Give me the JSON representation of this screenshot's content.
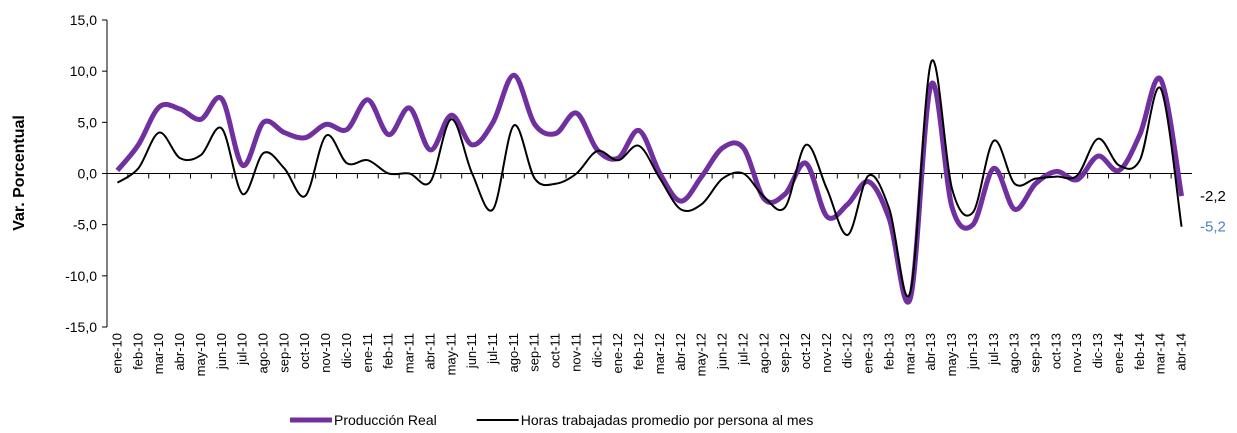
{
  "chart_data": {
    "type": "line",
    "y_label": "Var. Porcentual",
    "categories": [
      "ene-10",
      "feb-10",
      "mar-10",
      "abr-10",
      "may-10",
      "jun-10",
      "jul-10",
      "ago-10",
      "sep-10",
      "oct-10",
      "nov-10",
      "dic-10",
      "ene-11",
      "feb-11",
      "mar-11",
      "abr-11",
      "may-11",
      "jun-11",
      "jul-11",
      "ago-11",
      "sep-11",
      "oct-11",
      "nov-11",
      "dic-11",
      "ene-12",
      "feb-12",
      "mar-12",
      "abr-12",
      "may-12",
      "jun-12",
      "jul-12",
      "ago-12",
      "sep-12",
      "oct-12",
      "nov-12",
      "dic-12",
      "ene-13",
      "feb-13",
      "mar-13",
      "abr-13",
      "may-13",
      "jun-13",
      "jul-13",
      "ago-13",
      "sep-13",
      "oct-13",
      "nov-13",
      "dic-13",
      "ene-14",
      "feb-14",
      "mar-14",
      "abr-14"
    ],
    "series": [
      {
        "name": "Producción Real",
        "color": "#7030a0",
        "width": 5,
        "values": [
          0.3,
          2.8,
          6.5,
          6.3,
          5.3,
          7.3,
          0.8,
          5.0,
          4.0,
          3.5,
          4.8,
          4.3,
          7.2,
          3.8,
          6.4,
          2.3,
          5.7,
          2.8,
          5.0,
          9.6,
          4.8,
          3.9,
          5.9,
          2.3,
          1.5,
          4.2,
          0.0,
          -2.7,
          -0.3,
          2.5,
          2.5,
          -2.5,
          -2.0,
          1.0,
          -4.2,
          -3.0,
          -0.8,
          -4.5,
          -12.2,
          8.7,
          -3.3,
          -5.0,
          0.5,
          -3.5,
          -1.0,
          0.2,
          -0.6,
          1.7,
          0.3,
          3.8,
          9.2,
          -2.2
        ],
        "value_labels": [
          null,
          null,
          null,
          null,
          null,
          null,
          null,
          null,
          null,
          null,
          null,
          null,
          null,
          null,
          null,
          null,
          null,
          null,
          null,
          null,
          null,
          null,
          null,
          null,
          null,
          null,
          null,
          null,
          null,
          null,
          null,
          null,
          null,
          null,
          null,
          null,
          null,
          null,
          null,
          null,
          null,
          null,
          null,
          null,
          null,
          null,
          null,
          null,
          null,
          null,
          null,
          "-2,2"
        ],
        "label_color": "#000000"
      },
      {
        "name": "Horas trabajadas promedio por persona al mes",
        "color": "#000000",
        "width": 2,
        "values": [
          -0.9,
          0.5,
          4.0,
          1.5,
          1.8,
          4.4,
          -2.0,
          2.0,
          0.5,
          -2.2,
          3.7,
          1.0,
          1.3,
          0.0,
          0.0,
          -0.8,
          5.3,
          0.0,
          -3.5,
          4.7,
          -0.5,
          -1.0,
          0.0,
          2.2,
          1.3,
          2.7,
          -0.5,
          -3.5,
          -3.0,
          -0.5,
          0.0,
          -2.3,
          -3.3,
          2.8,
          -1.5,
          -6.0,
          -0.2,
          -3.5,
          -11.6,
          10.9,
          -1.5,
          -3.8,
          3.2,
          -1.0,
          -0.5,
          -0.3,
          -0.2,
          3.4,
          0.8,
          1.3,
          8.3,
          -5.2
        ],
        "value_labels": [
          null,
          null,
          null,
          null,
          null,
          null,
          null,
          null,
          null,
          null,
          null,
          null,
          null,
          null,
          null,
          null,
          null,
          null,
          null,
          null,
          null,
          null,
          null,
          null,
          null,
          null,
          null,
          null,
          null,
          null,
          null,
          null,
          null,
          null,
          null,
          null,
          null,
          null,
          null,
          null,
          null,
          null,
          null,
          null,
          null,
          null,
          null,
          null,
          null,
          null,
          null,
          "-5,2"
        ],
        "label_color": "#4f81bd"
      }
    ],
    "ylim": [
      -15,
      15
    ],
    "yticks": [
      {
        "value": -15,
        "label": "-15,0"
      },
      {
        "value": -10,
        "label": "-10,0"
      },
      {
        "value": -5,
        "label": "-5,0"
      },
      {
        "value": 0,
        "label": "0,0"
      },
      {
        "value": 5,
        "label": "5,0"
      },
      {
        "value": 10,
        "label": "10,0"
      },
      {
        "value": 15,
        "label": "15,0"
      }
    ],
    "legend": "bottom"
  }
}
